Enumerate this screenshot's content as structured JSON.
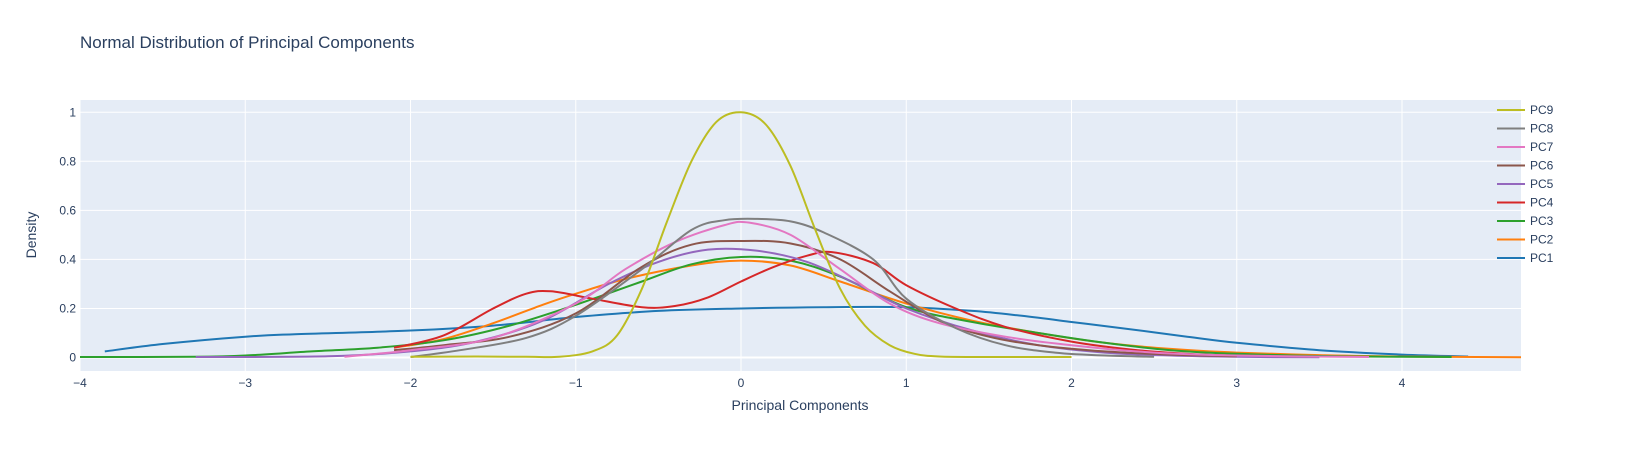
{
  "chart_data": {
    "type": "line",
    "title": "Normal Distribution of Principal Components",
    "xlabel": "Principal Components",
    "ylabel": "Density",
    "xlim": [
      -4,
      4.72
    ],
    "ylim": [
      -0.055,
      1.05
    ],
    "xticks": [
      -4,
      -3,
      -2,
      -1,
      0,
      1,
      2,
      3,
      4
    ],
    "yticks": [
      0,
      0.2,
      0.4,
      0.6,
      0.8,
      1
    ],
    "xtick_labels": [
      "−4",
      "−3",
      "−2",
      "−1",
      "0",
      "1",
      "2",
      "3",
      "4"
    ],
    "ytick_labels": [
      "0",
      "0.2",
      "0.4",
      "0.6",
      "0.8",
      "1"
    ],
    "grid": true,
    "legend_position": "right",
    "plot_background": "#e5ecf6",
    "series": [
      {
        "name": "PC1",
        "color": "#1f77b4",
        "points": [
          [
            -3.85,
            0.025
          ],
          [
            -3.5,
            0.055
          ],
          [
            -3.0,
            0.085
          ],
          [
            -2.7,
            0.095
          ],
          [
            -2.0,
            0.11
          ],
          [
            -1.5,
            0.13
          ],
          [
            -1.0,
            0.165
          ],
          [
            -0.5,
            0.19
          ],
          [
            0.0,
            0.2
          ],
          [
            0.5,
            0.205
          ],
          [
            1.0,
            0.205
          ],
          [
            1.4,
            0.19
          ],
          [
            1.7,
            0.17
          ],
          [
            2.0,
            0.145
          ],
          [
            2.3,
            0.12
          ],
          [
            2.7,
            0.085
          ],
          [
            3.0,
            0.06
          ],
          [
            3.5,
            0.03
          ],
          [
            4.0,
            0.012
          ],
          [
            4.4,
            0.004
          ]
        ]
      },
      {
        "name": "PC2",
        "color": "#ff7f0e",
        "points": [
          [
            -2.1,
            0.04
          ],
          [
            -1.8,
            0.075
          ],
          [
            -1.5,
            0.14
          ],
          [
            -1.2,
            0.215
          ],
          [
            -1.0,
            0.26
          ],
          [
            -0.7,
            0.32
          ],
          [
            -0.3,
            0.375
          ],
          [
            0.0,
            0.395
          ],
          [
            0.3,
            0.375
          ],
          [
            0.6,
            0.31
          ],
          [
            1.0,
            0.22
          ],
          [
            1.4,
            0.15
          ],
          [
            1.8,
            0.1
          ],
          [
            2.2,
            0.06
          ],
          [
            2.6,
            0.035
          ],
          [
            3.0,
            0.02
          ],
          [
            3.5,
            0.01
          ],
          [
            4.0,
            0.004
          ],
          [
            4.72,
            0.001
          ]
        ]
      },
      {
        "name": "PC3",
        "color": "#2ca02c",
        "points": [
          [
            -4.0,
            0.002
          ],
          [
            -3.3,
            0.003
          ],
          [
            -3.0,
            0.008
          ],
          [
            -2.6,
            0.025
          ],
          [
            -2.2,
            0.04
          ],
          [
            -1.8,
            0.07
          ],
          [
            -1.4,
            0.13
          ],
          [
            -1.0,
            0.215
          ],
          [
            -0.6,
            0.31
          ],
          [
            -0.3,
            0.38
          ],
          [
            0.0,
            0.41
          ],
          [
            0.3,
            0.395
          ],
          [
            0.6,
            0.33
          ],
          [
            1.0,
            0.205
          ],
          [
            1.4,
            0.145
          ],
          [
            1.8,
            0.1
          ],
          [
            2.2,
            0.06
          ],
          [
            2.6,
            0.03
          ],
          [
            3.0,
            0.015
          ],
          [
            3.5,
            0.006
          ],
          [
            4.0,
            0.003
          ],
          [
            4.3,
            0.002
          ]
        ]
      },
      {
        "name": "PC4",
        "color": "#d62728",
        "points": [
          [
            -2.1,
            0.04
          ],
          [
            -1.8,
            0.09
          ],
          [
            -1.5,
            0.2
          ],
          [
            -1.3,
            0.26
          ],
          [
            -1.15,
            0.27
          ],
          [
            -0.9,
            0.24
          ],
          [
            -0.6,
            0.205
          ],
          [
            -0.4,
            0.21
          ],
          [
            -0.2,
            0.245
          ],
          [
            0.0,
            0.31
          ],
          [
            0.2,
            0.37
          ],
          [
            0.4,
            0.415
          ],
          [
            0.55,
            0.43
          ],
          [
            0.8,
            0.385
          ],
          [
            1.0,
            0.295
          ],
          [
            1.3,
            0.2
          ],
          [
            1.6,
            0.125
          ],
          [
            2.0,
            0.065
          ],
          [
            2.4,
            0.03
          ],
          [
            2.8,
            0.012
          ],
          [
            3.2,
            0.005
          ]
        ]
      },
      {
        "name": "PC5",
        "color": "#9467bd",
        "points": [
          [
            -3.3,
            0.002
          ],
          [
            -2.5,
            0.005
          ],
          [
            -2.0,
            0.025
          ],
          [
            -1.6,
            0.065
          ],
          [
            -1.2,
            0.15
          ],
          [
            -0.8,
            0.3
          ],
          [
            -0.5,
            0.39
          ],
          [
            -0.2,
            0.44
          ],
          [
            0.1,
            0.435
          ],
          [
            0.4,
            0.39
          ],
          [
            0.7,
            0.3
          ],
          [
            1.0,
            0.2
          ],
          [
            1.4,
            0.11
          ],
          [
            1.8,
            0.05
          ],
          [
            2.2,
            0.02
          ],
          [
            2.6,
            0.008
          ],
          [
            3.0,
            0.003
          ],
          [
            3.5,
            0.001
          ]
        ]
      },
      {
        "name": "PC6",
        "color": "#8c564b",
        "points": [
          [
            -2.1,
            0.03
          ],
          [
            -1.8,
            0.05
          ],
          [
            -1.4,
            0.085
          ],
          [
            -1.0,
            0.18
          ],
          [
            -0.6,
            0.37
          ],
          [
            -0.3,
            0.46
          ],
          [
            0.0,
            0.475
          ],
          [
            0.3,
            0.465
          ],
          [
            0.6,
            0.4
          ],
          [
            0.9,
            0.27
          ],
          [
            1.2,
            0.15
          ],
          [
            1.5,
            0.085
          ],
          [
            1.8,
            0.05
          ],
          [
            2.2,
            0.025
          ],
          [
            2.6,
            0.012
          ],
          [
            3.0,
            0.005
          ]
        ]
      },
      {
        "name": "PC7",
        "color": "#e377c2",
        "points": [
          [
            -2.4,
            0.003
          ],
          [
            -2.0,
            0.03
          ],
          [
            -1.5,
            0.08
          ],
          [
            -1.0,
            0.22
          ],
          [
            -0.7,
            0.36
          ],
          [
            -0.4,
            0.47
          ],
          [
            -0.1,
            0.54
          ],
          [
            0.05,
            0.55
          ],
          [
            0.3,
            0.5
          ],
          [
            0.6,
            0.36
          ],
          [
            0.9,
            0.22
          ],
          [
            1.2,
            0.14
          ],
          [
            1.6,
            0.085
          ],
          [
            2.0,
            0.05
          ],
          [
            2.5,
            0.02
          ],
          [
            3.0,
            0.008
          ],
          [
            3.8,
            0.002
          ]
        ]
      },
      {
        "name": "PC8",
        "color": "#7f7f7f",
        "points": [
          [
            -2.0,
            0.002
          ],
          [
            -1.7,
            0.03
          ],
          [
            -1.3,
            0.08
          ],
          [
            -1.0,
            0.17
          ],
          [
            -0.6,
            0.36
          ],
          [
            -0.3,
            0.52
          ],
          [
            -0.1,
            0.56
          ],
          [
            0.1,
            0.565
          ],
          [
            0.3,
            0.555
          ],
          [
            0.5,
            0.51
          ],
          [
            0.8,
            0.4
          ],
          [
            1.0,
            0.24
          ],
          [
            1.3,
            0.12
          ],
          [
            1.6,
            0.05
          ],
          [
            1.9,
            0.02
          ],
          [
            2.2,
            0.008
          ],
          [
            2.5,
            0.003
          ]
        ]
      },
      {
        "name": "PC9",
        "color": "#bcbd22",
        "points": [
          [
            -2.0,
            0.003
          ],
          [
            -1.6,
            0.004
          ],
          [
            -1.3,
            0.003
          ],
          [
            -1.1,
            0.003
          ],
          [
            -0.9,
            0.025
          ],
          [
            -0.75,
            0.09
          ],
          [
            -0.6,
            0.28
          ],
          [
            -0.45,
            0.55
          ],
          [
            -0.3,
            0.8
          ],
          [
            -0.15,
            0.96
          ],
          [
            0.0,
            1.0
          ],
          [
            0.15,
            0.95
          ],
          [
            0.3,
            0.78
          ],
          [
            0.45,
            0.52
          ],
          [
            0.6,
            0.28
          ],
          [
            0.75,
            0.13
          ],
          [
            0.9,
            0.05
          ],
          [
            1.05,
            0.015
          ],
          [
            1.2,
            0.004
          ],
          [
            1.5,
            0.002
          ],
          [
            2.0,
            0.002
          ]
        ]
      }
    ]
  }
}
